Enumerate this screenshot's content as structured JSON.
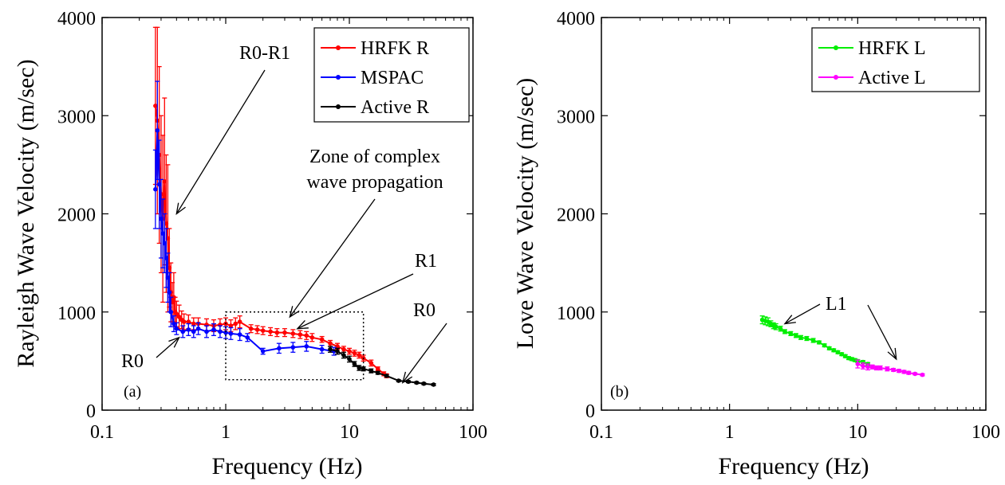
{
  "chart_data": [
    {
      "panel": "a",
      "type": "line",
      "panel_label": "(a)",
      "xlabel": "Frequency (Hz)",
      "ylabel": "Rayleigh Wave Velocity (m/sec)",
      "xscale": "log",
      "xlim": [
        0.1,
        100
      ],
      "ylim": [
        0,
        4000
      ],
      "xticks": [
        0.1,
        1,
        10,
        100
      ],
      "xtick_labels": [
        "0.1",
        "1",
        "10",
        "100"
      ],
      "yticks": [
        0,
        1000,
        2000,
        3000,
        4000
      ],
      "ytick_labels": [
        "0",
        "1000",
        "2000",
        "3000",
        "4000"
      ],
      "legend_position": "top-right",
      "series": [
        {
          "name": "HRFK R",
          "color": "#ff0000",
          "x": [
            0.27,
            0.28,
            0.29,
            0.3,
            0.31,
            0.32,
            0.33,
            0.34,
            0.35,
            0.36,
            0.37,
            0.38,
            0.39,
            0.4,
            0.42,
            0.44,
            0.46,
            0.5,
            0.55,
            0.6,
            0.7,
            0.8,
            0.9,
            1.0,
            1.1,
            1.2,
            1.3,
            1.6,
            1.8,
            2.0,
            2.3,
            2.6,
            3.0,
            3.5,
            4.0,
            4.5,
            5.0,
            6.0,
            7.0,
            8.0,
            9.0,
            10.0,
            11.0,
            12.0,
            13.0,
            15.0,
            17.0,
            19.0,
            20.0
          ],
          "y": [
            3100,
            2950,
            2600,
            2200,
            1950,
            2330,
            1900,
            1750,
            1450,
            1200,
            1100,
            1150,
            1000,
            980,
            950,
            920,
            900,
            900,
            880,
            880,
            870,
            860,
            870,
            880,
            860,
            880,
            900,
            830,
            820,
            810,
            800,
            790,
            790,
            780,
            770,
            760,
            740,
            720,
            680,
            650,
            620,
            600,
            580,
            560,
            530,
            480,
            420,
            370,
            350
          ],
          "err": [
            800,
            950,
            900,
            800,
            850,
            850,
            700,
            750,
            400,
            300,
            200,
            250,
            150,
            130,
            120,
            90,
            80,
            70,
            60,
            60,
            60,
            60,
            60,
            60,
            60,
            60,
            60,
            40,
            40,
            40,
            40,
            40,
            40,
            40,
            40,
            40,
            40,
            30,
            30,
            30,
            30,
            30,
            30,
            30,
            30,
            30,
            20,
            20,
            20
          ]
        },
        {
          "name": "MSPAC",
          "color": "#0000ff",
          "x": [
            0.27,
            0.28,
            0.29,
            0.3,
            0.31,
            0.32,
            0.33,
            0.34,
            0.35,
            0.36,
            0.38,
            0.4,
            0.45,
            0.5,
            0.55,
            0.6,
            0.7,
            0.8,
            0.9,
            1.0,
            1.1,
            1.3,
            1.5,
            2.0,
            2.7,
            3.5,
            4.5,
            6.0,
            7.5
          ],
          "y": [
            2250,
            2850,
            2300,
            1950,
            1800,
            1700,
            1550,
            1350,
            1200,
            1000,
            880,
            830,
            800,
            820,
            800,
            830,
            800,
            820,
            800,
            790,
            780,
            770,
            740,
            600,
            630,
            640,
            650,
            620,
            600
          ],
          "err": [
            400,
            500,
            450,
            400,
            350,
            300,
            300,
            250,
            200,
            150,
            80,
            60,
            60,
            60,
            60,
            60,
            60,
            60,
            60,
            60,
            60,
            60,
            40,
            30,
            50,
            50,
            50,
            40,
            40
          ]
        },
        {
          "name": "Active R",
          "color": "#000000",
          "x": [
            7.0,
            8.0,
            9.0,
            10.0,
            11.0,
            12.0,
            13.0,
            15.0,
            17.0,
            20.0,
            25.0,
            30.0,
            35.0,
            40.0,
            48.0
          ],
          "y": [
            620,
            600,
            560,
            520,
            470,
            430,
            420,
            400,
            380,
            350,
            300,
            290,
            280,
            270,
            260
          ],
          "err": [
            30,
            30,
            30,
            30,
            25,
            25,
            20,
            20,
            15,
            10,
            10,
            10,
            10,
            10,
            10
          ]
        }
      ],
      "annotations": [
        {
          "text": "R0-R1",
          "target": [
            0.4,
            2000
          ]
        },
        {
          "text": "Zone of complex",
          "target": [
            3.3,
            950
          ]
        },
        {
          "text": "wave propagation",
          "target": [
            3.3,
            950
          ]
        },
        {
          "text": "R1",
          "target": [
            3.8,
            830
          ]
        },
        {
          "text": "R0",
          "target": [
            0.42,
            740
          ]
        },
        {
          "text": "R0",
          "target": [
            27,
            280
          ]
        }
      ],
      "box": {
        "x": [
          1.0,
          13.0
        ],
        "y": [
          310,
          1000
        ]
      }
    },
    {
      "panel": "b",
      "type": "line",
      "panel_label": "(b)",
      "xlabel": "Frequency (Hz)",
      "ylabel": "Love Wave Velocity (m/sec)",
      "xscale": "log",
      "xlim": [
        0.1,
        100
      ],
      "ylim": [
        0,
        4000
      ],
      "xticks": [
        0.1,
        1,
        10,
        100
      ],
      "xtick_labels": [
        "0.1",
        "1",
        "10",
        "100"
      ],
      "yticks": [
        0,
        1000,
        2000,
        3000,
        4000
      ],
      "ytick_labels": [
        "0",
        "1000",
        "2000",
        "3000",
        "4000"
      ],
      "legend_position": "top-right",
      "series": [
        {
          "name": "HRFK L",
          "color": "#00ee00",
          "x": [
            1.8,
            1.9,
            2.0,
            2.1,
            2.2,
            2.3,
            2.5,
            2.7,
            3.0,
            3.3,
            3.6,
            4.0,
            4.5,
            5.0,
            5.5,
            6.0,
            6.5,
            7.0,
            7.5,
            8.0,
            8.5,
            9.0,
            9.5,
            10.0,
            11.0,
            12.0
          ],
          "y": [
            920,
            910,
            900,
            880,
            860,
            850,
            830,
            800,
            780,
            760,
            740,
            730,
            710,
            690,
            660,
            630,
            610,
            590,
            570,
            550,
            530,
            520,
            510,
            500,
            490,
            470
          ],
          "err": [
            40,
            40,
            40,
            30,
            30,
            30,
            25,
            20,
            20,
            20,
            20,
            20,
            20,
            15,
            15,
            15,
            15,
            15,
            15,
            15,
            15,
            15,
            15,
            15,
            15,
            15
          ]
        },
        {
          "name": "Active L",
          "color": "#ff00ff",
          "x": [
            10.0,
            11.0,
            12.0,
            13.0,
            14.0,
            15.0,
            17.0,
            19.0,
            21.0,
            23.0,
            25.0,
            28.0,
            32.0
          ],
          "y": [
            470,
            450,
            440,
            440,
            430,
            430,
            420,
            410,
            400,
            390,
            380,
            370,
            360
          ],
          "err": [
            40,
            30,
            30,
            20,
            20,
            20,
            20,
            15,
            15,
            15,
            15,
            10,
            10
          ]
        }
      ],
      "annotations": [
        {
          "text": "L1",
          "target": [
            2.7,
            880
          ]
        },
        {
          "text": "",
          "target": [
            20,
            520
          ]
        }
      ]
    }
  ]
}
